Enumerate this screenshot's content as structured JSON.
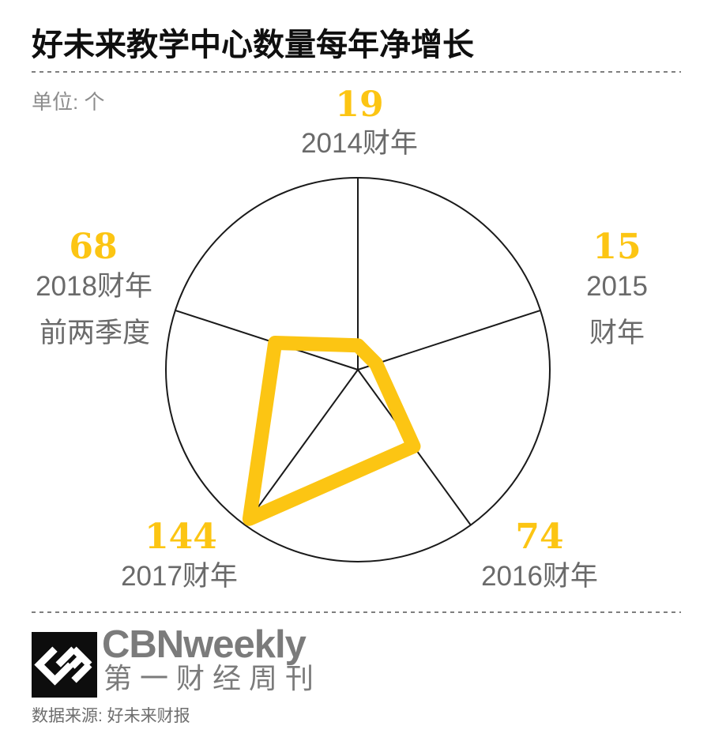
{
  "header": {
    "title": "好未来教学中心数量每年净增长",
    "unit_label": "单位: 个"
  },
  "chart_data": {
    "type": "radar",
    "title": "好未来教学中心数量每年净增长",
    "unit": "个",
    "categories": [
      "2014财年",
      "2015财年",
      "2016财年",
      "2017财年",
      "2018财年前两季度"
    ],
    "values": [
      19,
      15,
      74,
      144,
      68
    ],
    "max": 150,
    "num_spokes": 5,
    "start_angle_deg": -90,
    "accent_color": "#FCC513",
    "line_color": "#1a1a1a",
    "display_labels": [
      [
        "2014财年"
      ],
      [
        "2015",
        "财年"
      ],
      [
        "2016财年"
      ],
      [
        "2017财年"
      ],
      [
        "2018财年",
        "前两季度"
      ]
    ]
  },
  "footer": {
    "brand_name": "CBNweekly",
    "brand_name_cn": "第一财经周刊",
    "source": "数据来源: 好未来财报"
  }
}
